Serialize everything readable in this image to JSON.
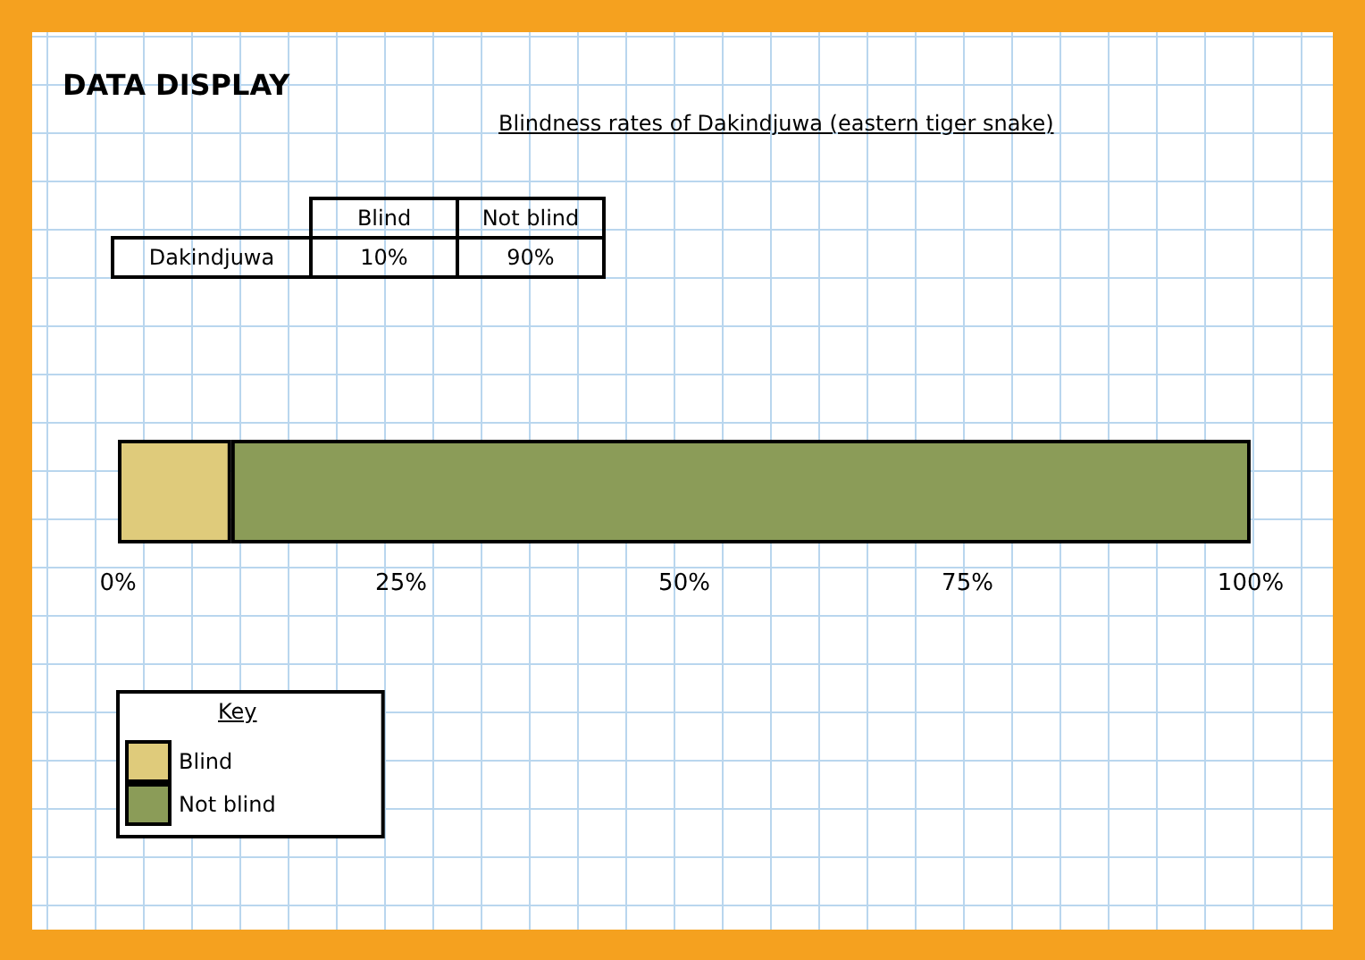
{
  "chart_data": {
    "type": "bar",
    "title": "DATA DISPLAY",
    "subtitle": "Blindness rates of Dakindjuwa (eastern tiger snake)",
    "orientation": "horizontal",
    "stacked": true,
    "categories": [
      null
    ],
    "annotations": [
      "Dakindjuwa",
      "10%",
      "90%"
    ],
    "series": [
      {
        "name": "Blind",
        "color": "#dfcb7b",
        "values": [
          10
        ]
      },
      {
        "name": "Not blind",
        "color": "#8b9c58",
        "values": [
          90
        ]
      }
    ],
    "xlim": [
      0,
      100
    ],
    "xticks": [
      {
        "value": 0,
        "label": "0%"
      },
      {
        "value": 25,
        "label": "25%"
      },
      {
        "value": 50,
        "label": "50%"
      },
      {
        "value": 75,
        "label": "75%"
      },
      {
        "value": 100,
        "label": "100%"
      }
    ],
    "tick_labels": "x",
    "legend": "bottom left",
    "legend_title": "Key"
  }
}
